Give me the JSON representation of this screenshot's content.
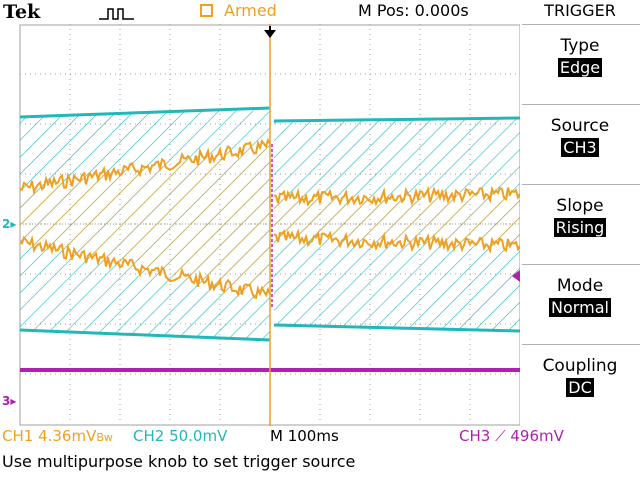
{
  "header": {
    "brand": "Tek",
    "acq_status": "Armed",
    "horizontal_position": "M Pos: 0.000s"
  },
  "menu": {
    "title": "TRIGGER",
    "items": [
      {
        "label": "Type",
        "value": "Edge"
      },
      {
        "label": "Source",
        "value": "CH3"
      },
      {
        "label": "Slope",
        "value": "Rising"
      },
      {
        "label": "Mode",
        "value": "Normal"
      },
      {
        "label": "Coupling",
        "value": "DC"
      }
    ]
  },
  "status": {
    "ch1": "CH1  4.36mV",
    "ch1_bw": "Bw",
    "ch2": "CH2  50.0mV",
    "timebase": "M 100ms",
    "ch3": "CH3 ",
    "trigger_level": " 496mV"
  },
  "markers": {
    "ch2": "2",
    "ch3": "3"
  },
  "help_text": "Use multipurpose knob to set trigger source",
  "colors": {
    "ch1": "#f0a020",
    "ch2": "#20b8b8",
    "ch3": "#b020b0",
    "grid": "#a0a0a0",
    "background": "#ffffff"
  }
}
